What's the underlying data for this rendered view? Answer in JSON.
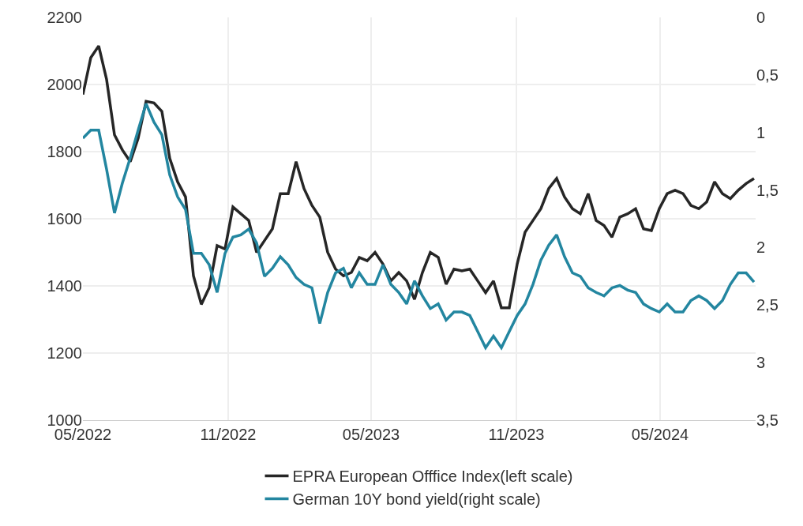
{
  "chart_data": {
    "type": "line",
    "x": [
      "2022-05-01",
      "2022-05-11",
      "2022-05-21",
      "2022-05-31",
      "2022-06-10",
      "2022-06-20",
      "2022-06-30",
      "2022-07-10",
      "2022-07-20",
      "2022-07-30",
      "2022-08-09",
      "2022-08-19",
      "2022-08-29",
      "2022-09-08",
      "2022-09-18",
      "2022-09-28",
      "2022-10-08",
      "2022-10-18",
      "2022-10-28",
      "2022-11-07",
      "2022-11-17",
      "2022-11-27",
      "2022-12-07",
      "2022-12-17",
      "2022-12-27",
      "2023-01-06",
      "2023-01-16",
      "2023-01-26",
      "2023-02-05",
      "2023-02-15",
      "2023-02-25",
      "2023-03-07",
      "2023-03-17",
      "2023-03-27",
      "2023-04-06",
      "2023-04-16",
      "2023-04-26",
      "2023-05-06",
      "2023-05-16",
      "2023-05-26",
      "2023-06-05",
      "2023-06-15",
      "2023-06-25",
      "2023-07-05",
      "2023-07-15",
      "2023-07-25",
      "2023-08-04",
      "2023-08-14",
      "2023-08-24",
      "2023-09-03",
      "2023-09-13",
      "2023-09-23",
      "2023-10-03",
      "2023-10-13",
      "2023-10-23",
      "2023-11-02",
      "2023-11-12",
      "2023-11-22",
      "2023-12-02",
      "2023-12-12",
      "2023-12-22",
      "2024-01-01",
      "2024-01-11",
      "2024-01-21",
      "2024-01-31",
      "2024-02-10",
      "2024-02-20",
      "2024-03-01",
      "2024-03-11",
      "2024-03-21",
      "2024-03-31",
      "2024-04-10",
      "2024-04-20",
      "2024-04-30",
      "2024-05-10",
      "2024-05-20",
      "2024-05-30",
      "2024-06-09",
      "2024-06-19",
      "2024-06-29",
      "2024-07-09",
      "2024-07-19",
      "2024-07-29",
      "2024-08-08",
      "2024-08-18",
      "2024-08-28"
    ],
    "series": [
      {
        "name": "EPRA European Offfice Index(left scale)",
        "color": "#262626",
        "values": [
          1970,
          2080,
          2115,
          2015,
          1850,
          1805,
          1770,
          1840,
          1950,
          1945,
          1920,
          1780,
          1710,
          1665,
          1430,
          1345,
          1395,
          1520,
          1510,
          1635,
          1615,
          1595,
          1500,
          1535,
          1570,
          1675,
          1675,
          1770,
          1690,
          1640,
          1605,
          1500,
          1450,
          1430,
          1440,
          1485,
          1475,
          1500,
          1465,
          1415,
          1440,
          1415,
          1360,
          1440,
          1500,
          1485,
          1405,
          1450,
          1445,
          1450,
          1415,
          1380,
          1415,
          1335,
          1335,
          1465,
          1560,
          1595,
          1630,
          1690,
          1720,
          1665,
          1630,
          1615,
          1675,
          1595,
          1580,
          1545,
          1605,
          1615,
          1630,
          1570,
          1565,
          1630,
          1675,
          1685,
          1675,
          1640,
          1630,
          1650,
          1710,
          1675,
          1660,
          1685,
          1705,
          1720
        ]
      },
      {
        "name": "German 10Y bond yield(right scale)",
        "color": "#2386a0",
        "axis": "y2",
        "values": [
          1.05,
          0.98,
          0.98,
          1.32,
          1.7,
          1.44,
          1.22,
          0.98,
          0.75,
          0.91,
          1.02,
          1.37,
          1.56,
          1.67,
          2.05,
          2.05,
          2.15,
          2.39,
          2.05,
          1.91,
          1.89,
          1.84,
          1.96,
          2.25,
          2.18,
          2.08,
          2.15,
          2.26,
          2.32,
          2.35,
          2.66,
          2.39,
          2.22,
          2.18,
          2.35,
          2.22,
          2.32,
          2.32,
          2.15,
          2.32,
          2.39,
          2.49,
          2.29,
          2.42,
          2.53,
          2.49,
          2.63,
          2.56,
          2.56,
          2.59,
          2.73,
          2.87,
          2.77,
          2.87,
          2.73,
          2.59,
          2.49,
          2.32,
          2.11,
          1.98,
          1.89,
          2.08,
          2.22,
          2.25,
          2.35,
          2.39,
          2.42,
          2.35,
          2.33,
          2.37,
          2.39,
          2.49,
          2.53,
          2.56,
          2.49,
          2.56,
          2.56,
          2.46,
          2.42,
          2.46,
          2.53,
          2.46,
          2.32,
          2.22,
          2.22,
          2.3
        ]
      }
    ],
    "xlim": [
      "2022-05-01",
      "2024-08-30"
    ],
    "xticks": [
      {
        "value": "2022-05-01",
        "label": "05/2022"
      },
      {
        "value": "2022-11-01",
        "label": "11/2022"
      },
      {
        "value": "2023-05-01",
        "label": "05/2023"
      },
      {
        "value": "2023-11-01",
        "label": "11/2023"
      },
      {
        "value": "2024-05-01",
        "label": "05/2024"
      }
    ],
    "ylim": [
      1000,
      2200
    ],
    "yticks": [
      1000,
      1200,
      1400,
      1600,
      1800,
      2000,
      2200
    ],
    "y2lim": [
      3.5,
      0
    ],
    "y2ticks": [
      0,
      {
        "value": 0.5,
        "label": "0,5"
      },
      1,
      {
        "value": 1.5,
        "label": "1,5"
      },
      2,
      {
        "value": 2.5,
        "label": "2,5"
      },
      3,
      {
        "value": 3.5,
        "label": "3,5"
      }
    ],
    "grid": true,
    "legend": "bottom",
    "line_style": "solid"
  }
}
